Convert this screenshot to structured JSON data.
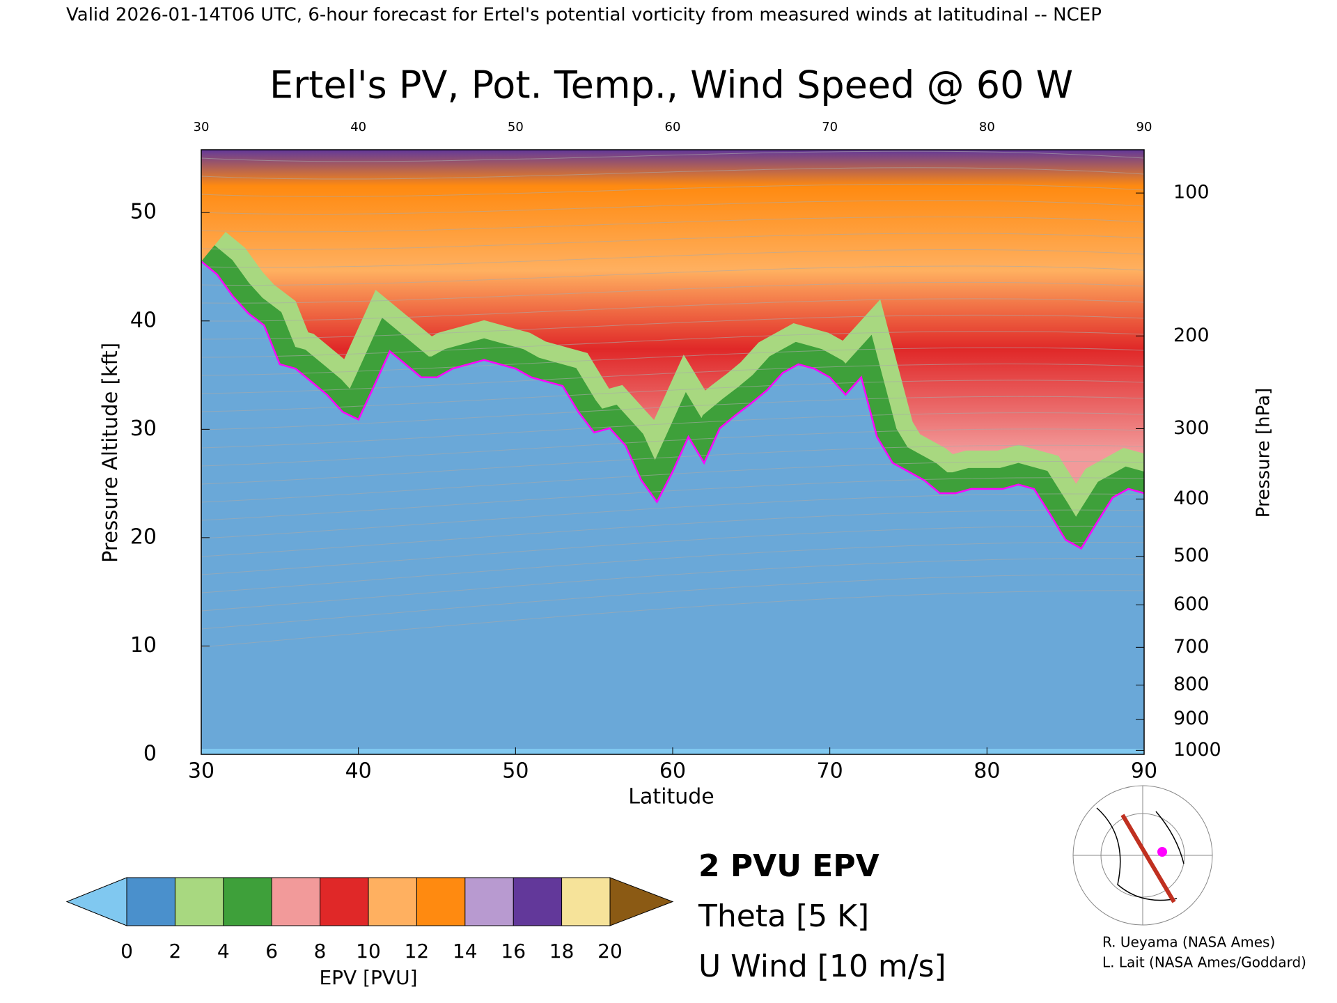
{
  "chart_data": {
    "type": "cross-section",
    "header": "Valid 2026-01-14T06 UTC, 6-hour forecast for Ertel's potential vorticity from measured winds at latitudinal -- NCEP",
    "title": "Ertel's PV, Pot. Temp., Wind Speed @ 60 W",
    "x_label": "Latitude",
    "y_label": "Pressure Altitude [kft]",
    "y2_label": "Pressure [hPa]",
    "xlim": [
      30,
      90
    ],
    "xticks": [
      30,
      40,
      50,
      60,
      70,
      80,
      90
    ],
    "ylim": [
      0,
      55.8
    ],
    "yticks": [
      0,
      10,
      20,
      30,
      40,
      50
    ],
    "y2scale": "pressure-altitude",
    "y2ticks": [
      100,
      200,
      300,
      400,
      500,
      600,
      700,
      800,
      900,
      1000
    ],
    "x": [
      30,
      31,
      32,
      33,
      34,
      35,
      36,
      37,
      38,
      39,
      40,
      41,
      42,
      43,
      44,
      45,
      46,
      47,
      48,
      49,
      50,
      51,
      52,
      53,
      54,
      55,
      56,
      57,
      58,
      59,
      60,
      61,
      62,
      63,
      64,
      65,
      66,
      67,
      68,
      69,
      70,
      71,
      72,
      73,
      74,
      75,
      76,
      77,
      78,
      79,
      80,
      81,
      82,
      83,
      84,
      85,
      86,
      87,
      88,
      89,
      90
    ],
    "series": [
      {
        "name": "2 PVU EPV",
        "color": "#ff00ff",
        "values": [
          45.5,
          44.3,
          42.3,
          40.7,
          39.6,
          36.0,
          35.6,
          34.4,
          33.2,
          31.6,
          30.9,
          34.0,
          37.2,
          36.0,
          34.8,
          34.8,
          35.6,
          36.0,
          36.4,
          36.0,
          35.6,
          34.8,
          34.4,
          34.0,
          31.6,
          29.7,
          30.1,
          28.5,
          25.3,
          23.3,
          26.1,
          29.3,
          26.9,
          30.1,
          31.3,
          32.4,
          33.6,
          35.2,
          36.0,
          35.6,
          34.8,
          33.2,
          34.8,
          29.3,
          26.9,
          26.1,
          25.3,
          24.1,
          24.1,
          24.5,
          24.5,
          24.5,
          24.9,
          24.5,
          22.2,
          19.8,
          19.0,
          21.4,
          23.7,
          24.5,
          24.1
        ]
      }
    ],
    "contours": [
      {
        "name": "Theta [5 K]",
        "color": "#aaaaaa"
      },
      {
        "name": "U Wind [10 m/s]",
        "color": "#000000"
      }
    ],
    "colorbar": {
      "label": "EPV [PVU]",
      "ticks": [
        0,
        2,
        4,
        6,
        8,
        10,
        12,
        14,
        16,
        18,
        20
      ],
      "colors": [
        "#4a90cc",
        "#a8d880",
        "#3ea03a",
        "#f29a9a",
        "#e02828",
        "#ffb060",
        "#ff8a10",
        "#b89ad0",
        "#62389a",
        "#f6e39a"
      ],
      "under": "#80c8f0",
      "over": "#8b5a14"
    },
    "credits": [
      "R. Ueyama (NASA Ames)",
      "L. Lait (NASA Ames/Goddard)"
    ]
  }
}
